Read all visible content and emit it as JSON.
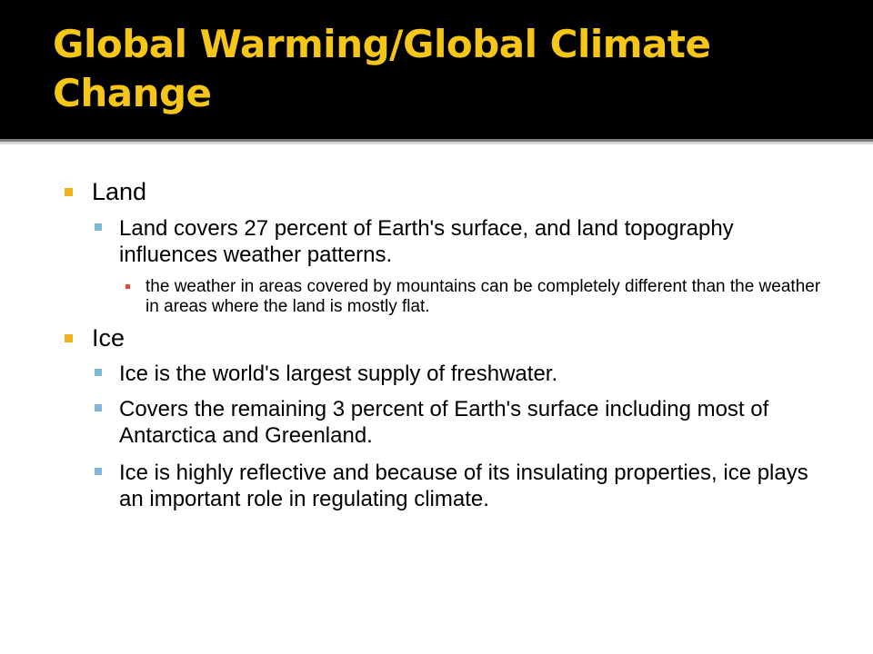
{
  "slide": {
    "title": "Global Warming/Global Climate Change"
  },
  "content": {
    "land": {
      "heading": "Land",
      "point": "Land covers 27 percent of Earth's surface, and land topography influences weather patterns.",
      "subpoint": "the weather in areas covered by mountains can be completely different than the weather in areas where the land is mostly flat."
    },
    "ice": {
      "heading": "Ice",
      "points": [
        "Ice is the world's largest supply of freshwater.",
        "Covers the remaining 3 percent of Earth's surface including most of Antarctica and Greenland.",
        "Ice is highly reflective and because of its insulating properties, ice plays an important role in regulating climate."
      ]
    }
  },
  "colors": {
    "title_text": "#f5c518",
    "title_background": "#000000",
    "bullet_level1": "#f0b21a",
    "bullet_level2": "#7fb7d8",
    "bullet_level3": "#e8463c"
  }
}
